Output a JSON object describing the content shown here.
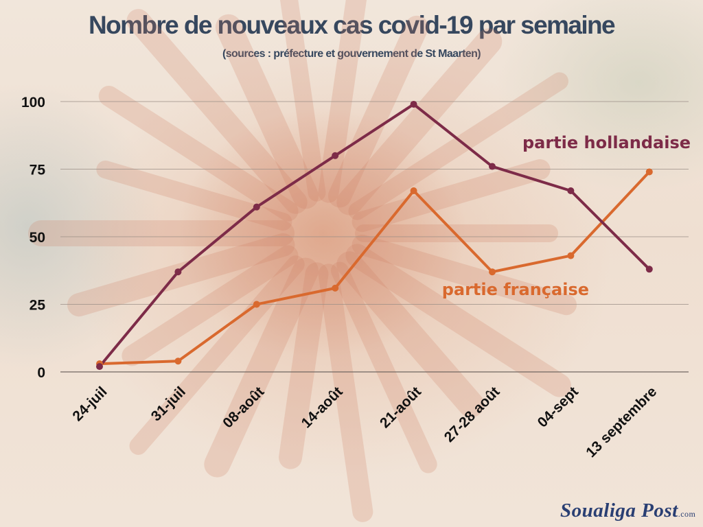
{
  "title": "Nombre de nouveaux cas covid-19 par semaine",
  "subtitle": "(sources : préfecture et gouvernement de St Maarten)",
  "logo": {
    "name": "Soualiga Post",
    "domain": ".com"
  },
  "colors": {
    "hollandaise": "#7d2b48",
    "francaise": "#d9692e",
    "title": "#36475e",
    "grid": "#9a8e86"
  },
  "chart_data": {
    "type": "line",
    "categories": [
      "24-juil",
      "31-juil",
      "08-août",
      "14-août",
      "21-août",
      "27-28 août",
      "04-sept",
      "13 septembre"
    ],
    "series": [
      {
        "name": "partie hollandaise",
        "values": [
          2,
          37,
          61,
          80,
          99,
          76,
          67,
          38
        ]
      },
      {
        "name": "partie française",
        "values": [
          3,
          4,
          25,
          31,
          67,
          37,
          43,
          74
        ]
      }
    ],
    "yticks": [
      0,
      25,
      50,
      75,
      100
    ],
    "ylim": [
      0,
      100
    ],
    "grid": true,
    "legend": "inline labels near lines"
  }
}
